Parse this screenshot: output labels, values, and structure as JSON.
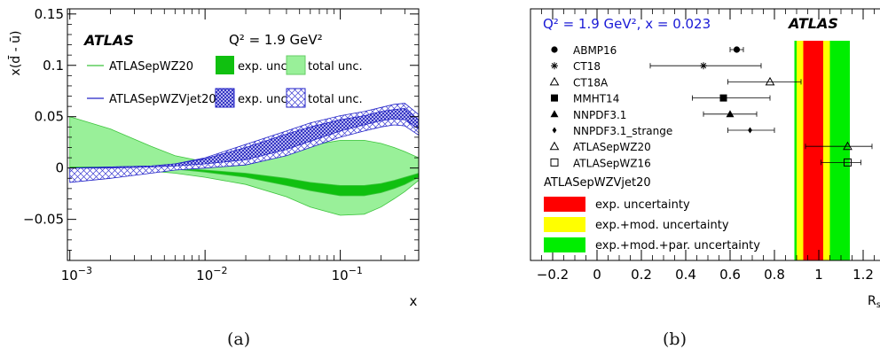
{
  "captions": {
    "a": "(a)",
    "b": "(b)"
  },
  "chart_data": [
    {
      "type": "area",
      "panel": "(a)",
      "brand": "ATLAS",
      "annotation": "Q² = 1.9 GeV²",
      "xlabel": "x",
      "ylabel": "x(d̄ - ū)",
      "x_scale": "log",
      "xlim": [
        0.00096,
        0.38
      ],
      "ylim": [
        -0.09,
        0.155
      ],
      "y_ticks": [
        {
          "v": 0.15,
          "label": "0.15"
        },
        {
          "v": 0.1,
          "label": "0.1"
        },
        {
          "v": 0.05,
          "label": "0.05"
        },
        {
          "v": 0,
          "label": "0"
        },
        {
          "v": -0.05,
          "label": "−0.05"
        }
      ],
      "x_ticks": [
        {
          "v": 0.001,
          "base": "10",
          "exp": "−3"
        },
        {
          "v": 0.01,
          "base": "10",
          "exp": "−2"
        },
        {
          "v": 0.1,
          "base": "10",
          "exp": "−1"
        }
      ],
      "legend": {
        "row1": {
          "label": "ATLASepWZ20",
          "band1": "exp. unc.",
          "band2": "total unc."
        },
        "row2": {
          "label": "ATLASepWZVjet20",
          "band1": "exp. unc.",
          "band2": "total unc."
        }
      },
      "colors": {
        "green_line": "#3ec43e",
        "green_exp": "#10c010",
        "green_total": "#99f099",
        "blue_line": "#2323c8"
      },
      "x": [
        0.001,
        0.002,
        0.004,
        0.006,
        0.01,
        0.02,
        0.04,
        0.06,
        0.1,
        0.15,
        0.2,
        0.25,
        0.3,
        0.38
      ],
      "series": [
        {
          "name": "ATLASepWZ20 total unc.",
          "lower": [
            -0.004,
            -0.003,
            -0.003,
            -0.005,
            -0.009,
            -0.016,
            -0.028,
            -0.038,
            -0.046,
            -0.045,
            -0.038,
            -0.03,
            -0.023,
            -0.012
          ],
          "upper": [
            0.05,
            0.038,
            0.021,
            0.012,
            0.006,
            0.008,
            0.015,
            0.022,
            0.027,
            0.027,
            0.024,
            0.02,
            0.016,
            0.01
          ]
        },
        {
          "name": "ATLASepWZ20 exp. unc.",
          "lower": [
            0.0,
            0.0,
            0.0,
            -0.001,
            -0.004,
            -0.009,
            -0.017,
            -0.022,
            -0.027,
            -0.027,
            -0.024,
            -0.02,
            -0.016,
            -0.009
          ],
          "upper": [
            0.001,
            0.001,
            0.001,
            0.0,
            -0.002,
            -0.005,
            -0.01,
            -0.014,
            -0.017,
            -0.017,
            -0.015,
            -0.012,
            -0.009,
            -0.005
          ]
        },
        {
          "name": "ATLASepWZVjet20 total unc.",
          "lower": [
            -0.014,
            -0.01,
            -0.005,
            -0.002,
            0.0,
            0.003,
            0.012,
            0.02,
            0.03,
            0.036,
            0.04,
            0.042,
            0.041,
            0.032
          ],
          "upper": [
            0.0,
            0.001,
            0.002,
            0.004,
            0.01,
            0.023,
            0.036,
            0.044,
            0.051,
            0.055,
            0.059,
            0.062,
            0.063,
            0.052
          ]
        },
        {
          "name": "ATLASepWZVjet20 exp. unc.",
          "lower": [
            0.0,
            0.0,
            0.001,
            0.002,
            0.004,
            0.008,
            0.018,
            0.026,
            0.036,
            0.042,
            0.046,
            0.048,
            0.047,
            0.038
          ],
          "upper": [
            0.0,
            0.001,
            0.002,
            0.004,
            0.009,
            0.02,
            0.033,
            0.04,
            0.047,
            0.051,
            0.055,
            0.057,
            0.058,
            0.047
          ]
        }
      ]
    },
    {
      "type": "scatter",
      "panel": "(b)",
      "brand": "ATLAS",
      "annotation": "Q² = 1.9 GeV², x = 0.023",
      "xlabel": "R_s",
      "xlim": [
        -0.3,
        1.3
      ],
      "x_ticks": [
        {
          "v": -0.2,
          "label": "−0.2"
        },
        {
          "v": 0,
          "label": "0"
        },
        {
          "v": 0.2,
          "label": "0.2"
        },
        {
          "v": 0.4,
          "label": "0.4"
        },
        {
          "v": 0.6,
          "label": "0.6"
        },
        {
          "v": 0.8,
          "label": "0.8"
        },
        {
          "v": 1,
          "label": "1"
        },
        {
          "v": 1.2,
          "label": "1.2"
        }
      ],
      "points": [
        {
          "name": "ABMP16",
          "marker": "circle",
          "value": 0.63,
          "err_lo": 0.03,
          "err_hi": 0.03
        },
        {
          "name": "CT18",
          "marker": "star",
          "value": 0.48,
          "err_lo": 0.24,
          "err_hi": 0.26
        },
        {
          "name": "CT18A",
          "marker": "tri-open",
          "value": 0.78,
          "err_lo": 0.19,
          "err_hi": 0.14
        },
        {
          "name": "MMHT14",
          "marker": "square",
          "value": 0.57,
          "err_lo": 0.14,
          "err_hi": 0.21
        },
        {
          "name": "NNPDF3.1",
          "marker": "tri",
          "value": 0.6,
          "err_lo": 0.12,
          "err_hi": 0.12
        },
        {
          "name": "NNPDF3.1_strange",
          "marker": "diamond",
          "value": 0.69,
          "err_lo": 0.1,
          "err_hi": 0.11
        },
        {
          "name": "ATLASepWZ20",
          "marker": "tri-open",
          "value": 1.13,
          "err_lo": 0.19,
          "err_hi": 0.11
        },
        {
          "name": "ATLASepWZ16",
          "marker": "square-open",
          "value": 1.13,
          "err_lo": 0.12,
          "err_hi": 0.06
        }
      ],
      "bands_title": "ATLASepWZVjet20",
      "bands": [
        {
          "label": "exp.+mod.+par. uncertainty",
          "color": "#00ee00",
          "lo": 0.89,
          "hi": 1.14
        },
        {
          "label": "exp.+mod. uncertainty",
          "color": "#ffff00",
          "lo": 0.9,
          "hi": 1.05
        },
        {
          "label": "exp. uncertainty",
          "color": "#ff0000",
          "lo": 0.93,
          "hi": 1.02
        }
      ],
      "colors": {
        "annotation": "#1a1ad6"
      }
    }
  ]
}
